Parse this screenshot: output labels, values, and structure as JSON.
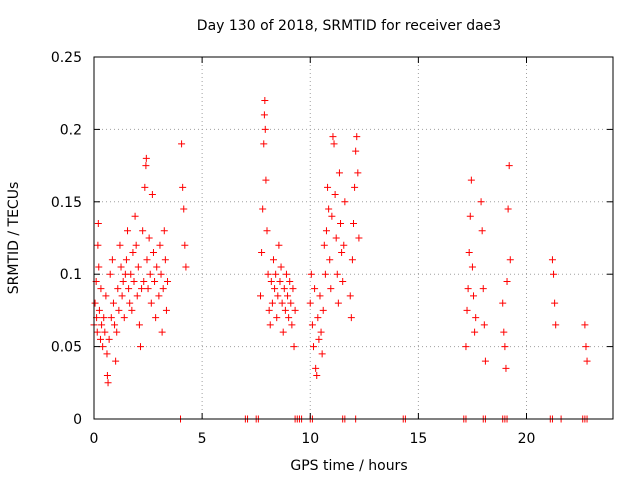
{
  "chart_data": {
    "type": "scatter",
    "title": "Day 130 of 2018, SRMTID for receiver dae3",
    "xlabel": "GPS time / hours",
    "ylabel": "SRMTID / TECUs",
    "xlim": [
      0,
      24
    ],
    "ylim": [
      0,
      0.25
    ],
    "xticks": [
      0,
      5,
      10,
      15,
      20
    ],
    "yticks": [
      0,
      0.05,
      0.1,
      0.15,
      0.2,
      0.25
    ],
    "xtick_labels": [
      "0",
      "5",
      "10",
      "15",
      "20"
    ],
    "ytick_labels": [
      "0",
      "0.05",
      "0.1",
      "0.15",
      "0.2",
      "0.25"
    ],
    "grid": true,
    "marker": "+",
    "color": "#ff0000",
    "series": [
      {
        "name": "SRMTID",
        "points": [
          [
            0.0,
            0.065
          ],
          [
            0.05,
            0.08
          ],
          [
            0.1,
            0.095
          ],
          [
            0.12,
            0.07
          ],
          [
            0.15,
            0.06
          ],
          [
            0.18,
            0.12
          ],
          [
            0.2,
            0.135
          ],
          [
            0.22,
            0.105
          ],
          [
            0.25,
            0.075
          ],
          [
            0.3,
            0.055
          ],
          [
            0.32,
            0.09
          ],
          [
            0.35,
            0.065
          ],
          [
            0.4,
            0.05
          ],
          [
            0.45,
            0.07
          ],
          [
            0.5,
            0.06
          ],
          [
            0.55,
            0.085
          ],
          [
            0.6,
            0.045
          ],
          [
            0.62,
            0.03
          ],
          [
            0.65,
            0.025
          ],
          [
            0.7,
            0.055
          ],
          [
            0.75,
            0.1
          ],
          [
            0.8,
            0.07
          ],
          [
            0.85,
            0.11
          ],
          [
            0.9,
            0.08
          ],
          [
            0.95,
            0.065
          ],
          [
            1.0,
            0.04
          ],
          [
            1.05,
            0.06
          ],
          [
            1.1,
            0.09
          ],
          [
            1.15,
            0.075
          ],
          [
            1.2,
            0.12
          ],
          [
            1.25,
            0.105
          ],
          [
            1.3,
            0.085
          ],
          [
            1.35,
            0.095
          ],
          [
            1.4,
            0.07
          ],
          [
            1.45,
            0.1
          ],
          [
            1.5,
            0.11
          ],
          [
            1.55,
            0.13
          ],
          [
            1.6,
            0.09
          ],
          [
            1.65,
            0.08
          ],
          [
            1.7,
            0.1
          ],
          [
            1.75,
            0.075
          ],
          [
            1.8,
            0.115
          ],
          [
            1.85,
            0.095
          ],
          [
            1.9,
            0.14
          ],
          [
            1.95,
            0.12
          ],
          [
            2.0,
            0.085
          ],
          [
            2.05,
            0.105
          ],
          [
            2.1,
            0.065
          ],
          [
            2.15,
            0.05
          ],
          [
            2.2,
            0.09
          ],
          [
            2.25,
            0.13
          ],
          [
            2.3,
            0.095
          ],
          [
            2.35,
            0.16
          ],
          [
            2.4,
            0.175
          ],
          [
            2.42,
            0.18
          ],
          [
            2.45,
            0.11
          ],
          [
            2.5,
            0.09
          ],
          [
            2.55,
            0.125
          ],
          [
            2.6,
            0.1
          ],
          [
            2.65,
            0.08
          ],
          [
            2.7,
            0.155
          ],
          [
            2.75,
            0.115
          ],
          [
            2.8,
            0.095
          ],
          [
            2.85,
            0.07
          ],
          [
            2.9,
            0.105
          ],
          [
            3.0,
            0.085
          ],
          [
            3.05,
            0.12
          ],
          [
            3.1,
            0.1
          ],
          [
            3.15,
            0.06
          ],
          [
            3.2,
            0.09
          ],
          [
            3.25,
            0.13
          ],
          [
            3.3,
            0.11
          ],
          [
            3.35,
            0.075
          ],
          [
            3.4,
            0.095
          ],
          [
            4.05,
            0.19
          ],
          [
            4.1,
            0.16
          ],
          [
            4.15,
            0.145
          ],
          [
            4.2,
            0.12
          ],
          [
            4.25,
            0.105
          ],
          [
            7.7,
            0.085
          ],
          [
            7.75,
            0.115
          ],
          [
            7.8,
            0.145
          ],
          [
            7.85,
            0.19
          ],
          [
            7.88,
            0.21
          ],
          [
            7.9,
            0.22
          ],
          [
            7.92,
            0.2
          ],
          [
            7.95,
            0.165
          ],
          [
            8.0,
            0.13
          ],
          [
            8.05,
            0.1
          ],
          [
            8.1,
            0.075
          ],
          [
            8.15,
            0.065
          ],
          [
            8.2,
            0.095
          ],
          [
            8.25,
            0.08
          ],
          [
            8.3,
            0.11
          ],
          [
            8.35,
            0.09
          ],
          [
            8.4,
            0.1
          ],
          [
            8.45,
            0.07
          ],
          [
            8.5,
            0.085
          ],
          [
            8.55,
            0.12
          ],
          [
            8.6,
            0.095
          ],
          [
            8.65,
            0.105
          ],
          [
            8.7,
            0.08
          ],
          [
            8.75,
            0.06
          ],
          [
            8.8,
            0.09
          ],
          [
            8.85,
            0.075
          ],
          [
            8.9,
            0.1
          ],
          [
            8.95,
            0.085
          ],
          [
            9.0,
            0.07
          ],
          [
            9.05,
            0.095
          ],
          [
            9.1,
            0.08
          ],
          [
            9.15,
            0.065
          ],
          [
            9.2,
            0.09
          ],
          [
            9.25,
            0.05
          ],
          [
            9.3,
            0.075
          ],
          [
            10.0,
            0.08
          ],
          [
            10.05,
            0.1
          ],
          [
            10.1,
            0.065
          ],
          [
            10.15,
            0.05
          ],
          [
            10.2,
            0.09
          ],
          [
            10.25,
            0.035
          ],
          [
            10.3,
            0.03
          ],
          [
            10.35,
            0.07
          ],
          [
            10.4,
            0.055
          ],
          [
            10.45,
            0.085
          ],
          [
            10.5,
            0.06
          ],
          [
            10.55,
            0.045
          ],
          [
            10.6,
            0.075
          ],
          [
            10.65,
            0.12
          ],
          [
            10.7,
            0.1
          ],
          [
            10.75,
            0.13
          ],
          [
            10.8,
            0.16
          ],
          [
            10.85,
            0.145
          ],
          [
            10.9,
            0.11
          ],
          [
            10.95,
            0.09
          ],
          [
            11.0,
            0.14
          ],
          [
            11.05,
            0.195
          ],
          [
            11.1,
            0.19
          ],
          [
            11.15,
            0.155
          ],
          [
            11.2,
            0.125
          ],
          [
            11.25,
            0.1
          ],
          [
            11.3,
            0.08
          ],
          [
            11.35,
            0.17
          ],
          [
            11.4,
            0.135
          ],
          [
            11.45,
            0.115
          ],
          [
            11.5,
            0.095
          ],
          [
            11.55,
            0.12
          ],
          [
            11.6,
            0.15
          ],
          [
            11.85,
            0.085
          ],
          [
            11.9,
            0.07
          ],
          [
            11.95,
            0.11
          ],
          [
            12.0,
            0.135
          ],
          [
            12.05,
            0.16
          ],
          [
            12.1,
            0.185
          ],
          [
            12.15,
            0.195
          ],
          [
            12.2,
            0.17
          ],
          [
            12.25,
            0.125
          ],
          [
            17.2,
            0.05
          ],
          [
            17.25,
            0.075
          ],
          [
            17.3,
            0.09
          ],
          [
            17.35,
            0.115
          ],
          [
            17.4,
            0.14
          ],
          [
            17.45,
            0.165
          ],
          [
            17.5,
            0.105
          ],
          [
            17.55,
            0.085
          ],
          [
            17.6,
            0.06
          ],
          [
            17.65,
            0.07
          ],
          [
            17.9,
            0.15
          ],
          [
            17.95,
            0.13
          ],
          [
            18.0,
            0.09
          ],
          [
            18.05,
            0.065
          ],
          [
            18.1,
            0.04
          ],
          [
            18.9,
            0.08
          ],
          [
            18.95,
            0.06
          ],
          [
            19.0,
            0.05
          ],
          [
            19.05,
            0.035
          ],
          [
            19.1,
            0.095
          ],
          [
            19.15,
            0.145
          ],
          [
            19.2,
            0.175
          ],
          [
            19.25,
            0.11
          ],
          [
            21.2,
            0.11
          ],
          [
            21.25,
            0.1
          ],
          [
            21.3,
            0.08
          ],
          [
            21.35,
            0.065
          ],
          [
            22.7,
            0.065
          ],
          [
            22.75,
            0.05
          ],
          [
            22.8,
            0.04
          ],
          [
            4.0,
            0.0
          ],
          [
            7.0,
            0.0
          ],
          [
            7.1,
            0.0
          ],
          [
            7.5,
            0.0
          ],
          [
            7.6,
            0.0
          ],
          [
            9.3,
            0.0
          ],
          [
            9.4,
            0.0
          ],
          [
            9.5,
            0.0
          ],
          [
            9.6,
            0.0
          ],
          [
            10.0,
            0.0
          ],
          [
            10.1,
            0.0
          ],
          [
            11.5,
            0.0
          ],
          [
            11.6,
            0.0
          ],
          [
            12.1,
            0.0
          ],
          [
            14.3,
            0.0
          ],
          [
            14.4,
            0.0
          ],
          [
            17.1,
            0.0
          ],
          [
            17.2,
            0.0
          ],
          [
            18.0,
            0.0
          ],
          [
            18.1,
            0.0
          ],
          [
            18.9,
            0.0
          ],
          [
            19.0,
            0.0
          ],
          [
            19.1,
            0.0
          ],
          [
            21.1,
            0.0
          ],
          [
            21.2,
            0.0
          ],
          [
            21.6,
            0.0
          ],
          [
            22.6,
            0.0
          ],
          [
            22.7,
            0.0
          ],
          [
            22.8,
            0.0
          ]
        ]
      }
    ]
  }
}
